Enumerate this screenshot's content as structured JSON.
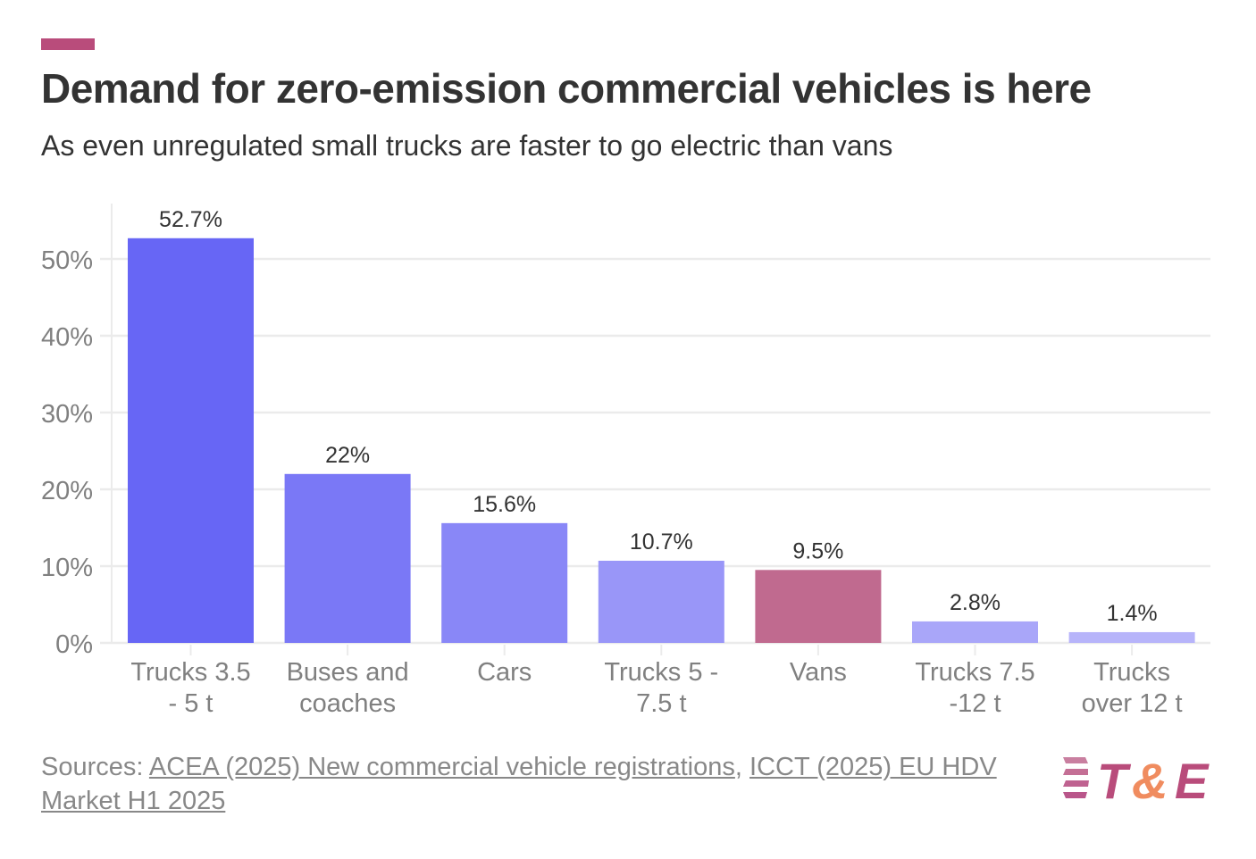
{
  "header": {
    "title": "Demand for zero-emission commercial vehicles is here",
    "subtitle": "As even unregulated small trucks are faster to go electric than vans"
  },
  "colors": {
    "accent": "#b94c7b",
    "logo_primary": "#b94c7b",
    "logo_secondary": "#f08c5f"
  },
  "chart_data": {
    "type": "bar",
    "title": "Demand for zero-emission commercial vehicles is here",
    "subtitle": "As even unregulated small trucks are faster to go electric than vans",
    "xlabel": "",
    "ylabel": "",
    "ylim": [
      0,
      55
    ],
    "yticks": [
      0,
      10,
      20,
      30,
      40,
      50
    ],
    "ytick_labels": [
      "0%",
      "10%",
      "20%",
      "30%",
      "40%",
      "50%"
    ],
    "grid": true,
    "categories": [
      [
        "Trucks 3.5",
        "- 5 t"
      ],
      [
        "Buses and",
        "coaches"
      ],
      [
        "Cars"
      ],
      [
        "Trucks 5 -",
        "7.5 t"
      ],
      [
        "Vans"
      ],
      [
        "Trucks 7.5",
        "-12 t"
      ],
      [
        "Trucks",
        "over 12 t"
      ]
    ],
    "values": [
      52.7,
      22,
      15.6,
      10.7,
      9.5,
      2.8,
      1.4
    ],
    "data_labels": [
      "52.7%",
      "22%",
      "15.6%",
      "10.7%",
      "9.5%",
      "2.8%",
      "1.4%"
    ],
    "bar_colors": [
      "#6766f5",
      "#7a78f6",
      "#8987f7",
      "#9996f8",
      "#c06a8f",
      "#a9a6f9",
      "#b7b4fa"
    ],
    "highlighted_category": "Vans"
  },
  "footer": {
    "prefix": "Sources: ",
    "links": [
      "ACEA (2025) New commercial vehicle registrations",
      "ICCT (2025) EU HDV Market H1 2025"
    ],
    "separator": ", "
  },
  "logo": {
    "text_t": "T",
    "text_amp": "&",
    "text_e": "E"
  }
}
